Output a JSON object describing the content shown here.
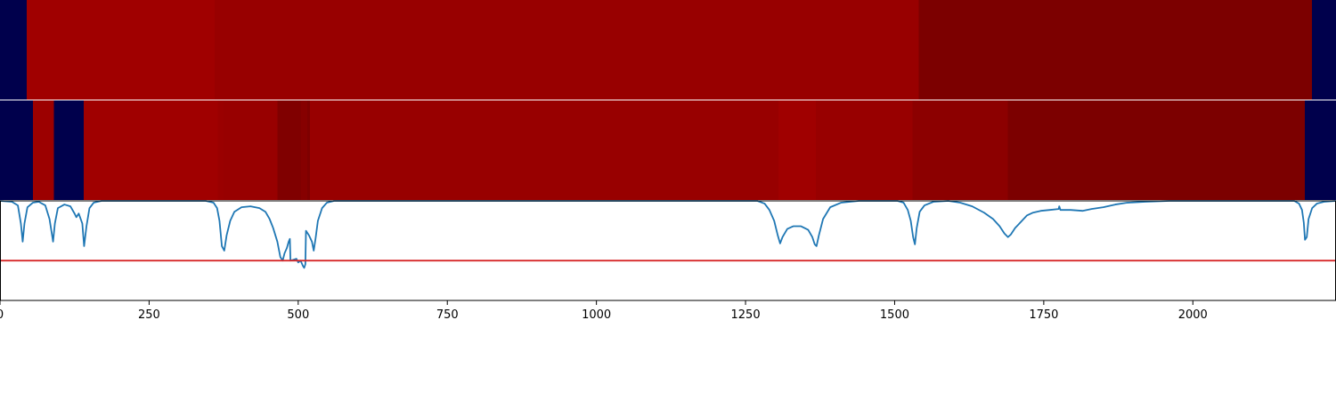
{
  "chart_data": [
    {
      "type": "heatmap",
      "colormap": "seismic",
      "x_range": [
        0,
        2240
      ],
      "segments": [
        {
          "start": 0,
          "end": 45,
          "color": "#00004c"
        },
        {
          "start": 45,
          "end": 360,
          "color": "#a00000"
        },
        {
          "start": 360,
          "end": 1540,
          "color": "#980000"
        },
        {
          "start": 1540,
          "end": 2200,
          "color": "#7c0000"
        },
        {
          "start": 2200,
          "end": 2240,
          "color": "#00004c"
        }
      ]
    },
    {
      "type": "heatmap",
      "colormap": "seismic",
      "x_range": [
        0,
        2240
      ],
      "segments": [
        {
          "start": 0,
          "end": 55,
          "color": "#00004c"
        },
        {
          "start": 55,
          "end": 90,
          "color": "#9c0000"
        },
        {
          "start": 90,
          "end": 140,
          "color": "#00004c"
        },
        {
          "start": 140,
          "end": 365,
          "color": "#a00000"
        },
        {
          "start": 365,
          "end": 375,
          "color": "#9a0000"
        },
        {
          "start": 375,
          "end": 465,
          "color": "#980000"
        },
        {
          "start": 465,
          "end": 505,
          "color": "#800000"
        },
        {
          "start": 505,
          "end": 515,
          "color": "#860000"
        },
        {
          "start": 515,
          "end": 520,
          "color": "#7e0000"
        },
        {
          "start": 520,
          "end": 1305,
          "color": "#980000"
        },
        {
          "start": 1305,
          "end": 1368,
          "color": "#a00000"
        },
        {
          "start": 1368,
          "end": 1530,
          "color": "#980000"
        },
        {
          "start": 1530,
          "end": 1690,
          "color": "#8c0000"
        },
        {
          "start": 1690,
          "end": 2188,
          "color": "#7c0000"
        },
        {
          "start": 2188,
          "end": 2240,
          "color": "#00004c"
        }
      ]
    },
    {
      "type": "line",
      "xlim": [
        0,
        2240
      ],
      "ylim": [
        -0.1,
        1.0
      ],
      "x_ticks": [
        0,
        250,
        500,
        750,
        1000,
        1250,
        1500,
        1750,
        2000
      ],
      "x_tick_labels": [
        "0",
        "250",
        "500",
        "750",
        "1000",
        "1250",
        "1500",
        "1750",
        "2000"
      ],
      "threshold": 0.34,
      "threshold_color": "#d62728",
      "series": [
        {
          "color": "#1f77b4",
          "points": [
            [
              0,
              1.0
            ],
            [
              20,
              0.99
            ],
            [
              30,
              0.95
            ],
            [
              35,
              0.75
            ],
            [
              38,
              0.55
            ],
            [
              41,
              0.75
            ],
            [
              46,
              0.93
            ],
            [
              55,
              0.98
            ],
            [
              65,
              0.99
            ],
            [
              76,
              0.95
            ],
            [
              83,
              0.8
            ],
            [
              89,
              0.55
            ],
            [
              92,
              0.75
            ],
            [
              97,
              0.92
            ],
            [
              108,
              0.96
            ],
            [
              118,
              0.94
            ],
            [
              125,
              0.86
            ],
            [
              128,
              0.82
            ],
            [
              132,
              0.86
            ],
            [
              138,
              0.75
            ],
            [
              141,
              0.5
            ],
            [
              145,
              0.72
            ],
            [
              150,
              0.92
            ],
            [
              157,
              0.98
            ],
            [
              170,
              1.0
            ],
            [
              345,
              1.0
            ],
            [
              358,
              0.98
            ],
            [
              364,
              0.92
            ],
            [
              368,
              0.78
            ],
            [
              372,
              0.5
            ],
            [
              376,
              0.45
            ],
            [
              380,
              0.62
            ],
            [
              386,
              0.78
            ],
            [
              393,
              0.88
            ],
            [
              405,
              0.93
            ],
            [
              420,
              0.94
            ],
            [
              435,
              0.92
            ],
            [
              445,
              0.88
            ],
            [
              452,
              0.8
            ],
            [
              458,
              0.7
            ],
            [
              465,
              0.55
            ],
            [
              470,
              0.38
            ],
            [
              474,
              0.34
            ],
            [
              477,
              0.42
            ],
            [
              481,
              0.48
            ],
            [
              484,
              0.55
            ],
            [
              486,
              0.58
            ],
            [
              487,
              0.34
            ],
            [
              492,
              0.35
            ],
            [
              497,
              0.36
            ],
            [
              500,
              0.32
            ],
            [
              504,
              0.34
            ],
            [
              508,
              0.28
            ],
            [
              510,
              0.26
            ],
            [
              512,
              0.3
            ],
            [
              513,
              0.67
            ],
            [
              518,
              0.62
            ],
            [
              523,
              0.55
            ],
            [
              526,
              0.45
            ],
            [
              529,
              0.58
            ],
            [
              533,
              0.78
            ],
            [
              540,
              0.92
            ],
            [
              548,
              0.98
            ],
            [
              560,
              1.0
            ],
            [
              1270,
              1.0
            ],
            [
              1282,
              0.97
            ],
            [
              1290,
              0.9
            ],
            [
              1298,
              0.78
            ],
            [
              1304,
              0.62
            ],
            [
              1308,
              0.53
            ],
            [
              1312,
              0.6
            ],
            [
              1320,
              0.69
            ],
            [
              1330,
              0.72
            ],
            [
              1343,
              0.72
            ],
            [
              1355,
              0.68
            ],
            [
              1362,
              0.6
            ],
            [
              1366,
              0.52
            ],
            [
              1369,
              0.5
            ],
            [
              1373,
              0.62
            ],
            [
              1380,
              0.8
            ],
            [
              1392,
              0.93
            ],
            [
              1410,
              0.98
            ],
            [
              1440,
              1.0
            ],
            [
              1505,
              1.0
            ],
            [
              1515,
              0.98
            ],
            [
              1522,
              0.9
            ],
            [
              1527,
              0.78
            ],
            [
              1531,
              0.6
            ],
            [
              1534,
              0.52
            ],
            [
              1537,
              0.7
            ],
            [
              1542,
              0.88
            ],
            [
              1550,
              0.95
            ],
            [
              1565,
              0.99
            ],
            [
              1590,
              1.0
            ],
            [
              1610,
              0.98
            ],
            [
              1630,
              0.94
            ],
            [
              1650,
              0.87
            ],
            [
              1665,
              0.8
            ],
            [
              1676,
              0.72
            ],
            [
              1684,
              0.64
            ],
            [
              1690,
              0.6
            ],
            [
              1695,
              0.63
            ],
            [
              1702,
              0.7
            ],
            [
              1712,
              0.77
            ],
            [
              1722,
              0.84
            ],
            [
              1732,
              0.87
            ],
            [
              1745,
              0.89
            ],
            [
              1760,
              0.9
            ],
            [
              1775,
              0.91
            ],
            [
              1776,
              0.94
            ],
            [
              1778,
              0.9
            ],
            [
              1795,
              0.9
            ],
            [
              1815,
              0.89
            ],
            [
              1830,
              0.91
            ],
            [
              1850,
              0.93
            ],
            [
              1870,
              0.96
            ],
            [
              1890,
              0.98
            ],
            [
              1920,
              0.99
            ],
            [
              1960,
              1.0
            ],
            [
              2170,
              1.0
            ],
            [
              2178,
              0.97
            ],
            [
              2183,
              0.9
            ],
            [
              2186,
              0.76
            ],
            [
              2188,
              0.57
            ],
            [
              2191,
              0.6
            ],
            [
              2194,
              0.8
            ],
            [
              2200,
              0.92
            ],
            [
              2208,
              0.97
            ],
            [
              2220,
              0.99
            ],
            [
              2240,
              1.0
            ]
          ]
        }
      ]
    }
  ]
}
